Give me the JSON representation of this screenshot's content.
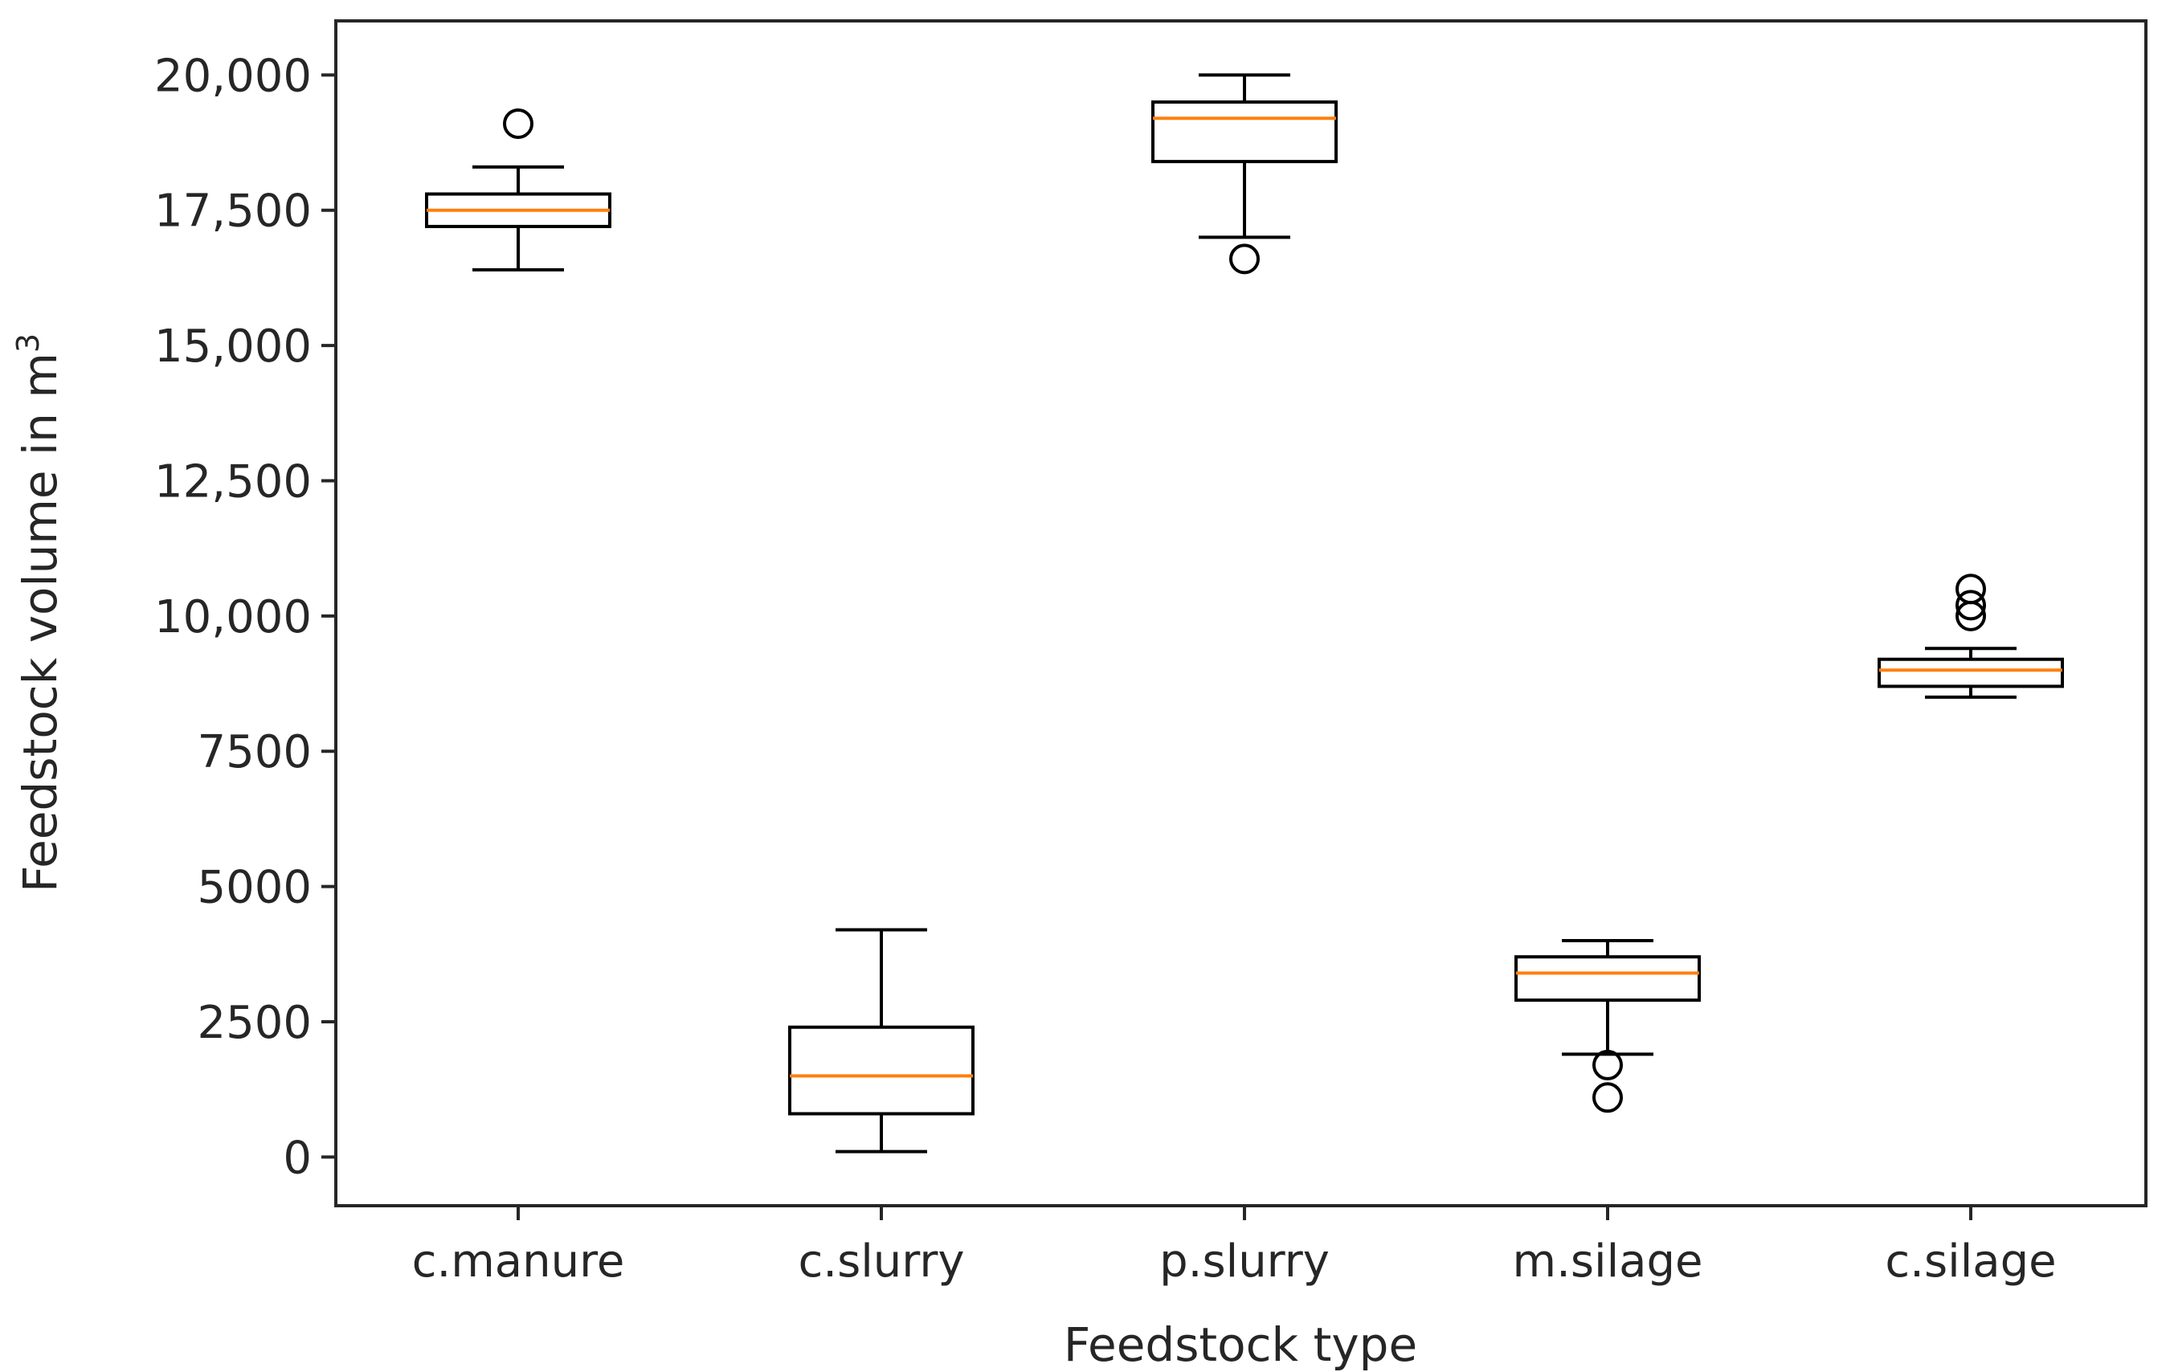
{
  "chart_data": {
    "type": "boxplot",
    "title": "",
    "xlabel": "Feedstock type",
    "ylabel": "Feedstock volume in m",
    "ylabel_superscript": "3",
    "ylim": [
      -900,
      21000
    ],
    "yticks": [
      0,
      2500,
      5000,
      7500,
      10000,
      12500,
      15000,
      17500,
      20000
    ],
    "ytick_labels": [
      "0",
      "2500",
      "5000",
      "7500",
      "10,000",
      "12,500",
      "15,000",
      "17,500",
      "20,000"
    ],
    "categories": [
      "c.manure",
      "c.slurry",
      "p.slurry",
      "m.silage",
      "c.silage"
    ],
    "boxes": [
      {
        "name": "c.manure",
        "whisker_low": 16400,
        "q1": 17200,
        "median": 17500,
        "q3": 17800,
        "whisker_high": 18300,
        "outliers": [
          19100
        ]
      },
      {
        "name": "c.slurry",
        "whisker_low": 100,
        "q1": 800,
        "median": 1500,
        "q3": 2400,
        "whisker_high": 4200,
        "outliers": []
      },
      {
        "name": "p.slurry",
        "whisker_low": 17000,
        "q1": 18400,
        "median": 19200,
        "q3": 19500,
        "whisker_high": 20000,
        "outliers": [
          16600
        ]
      },
      {
        "name": "m.silage",
        "whisker_low": 1900,
        "q1": 2900,
        "median": 3400,
        "q3": 3700,
        "whisker_high": 4000,
        "outliers": [
          1700,
          1100
        ]
      },
      {
        "name": "c.silage",
        "whisker_low": 8500,
        "q1": 8700,
        "median": 9000,
        "q3": 9200,
        "whisker_high": 9400,
        "outliers": [
          10000,
          10200,
          10500
        ]
      }
    ],
    "colors": {
      "box": "#000000",
      "median": "#ff7f0e",
      "axis": "#262626"
    },
    "grid": false,
    "legend": "none"
  }
}
